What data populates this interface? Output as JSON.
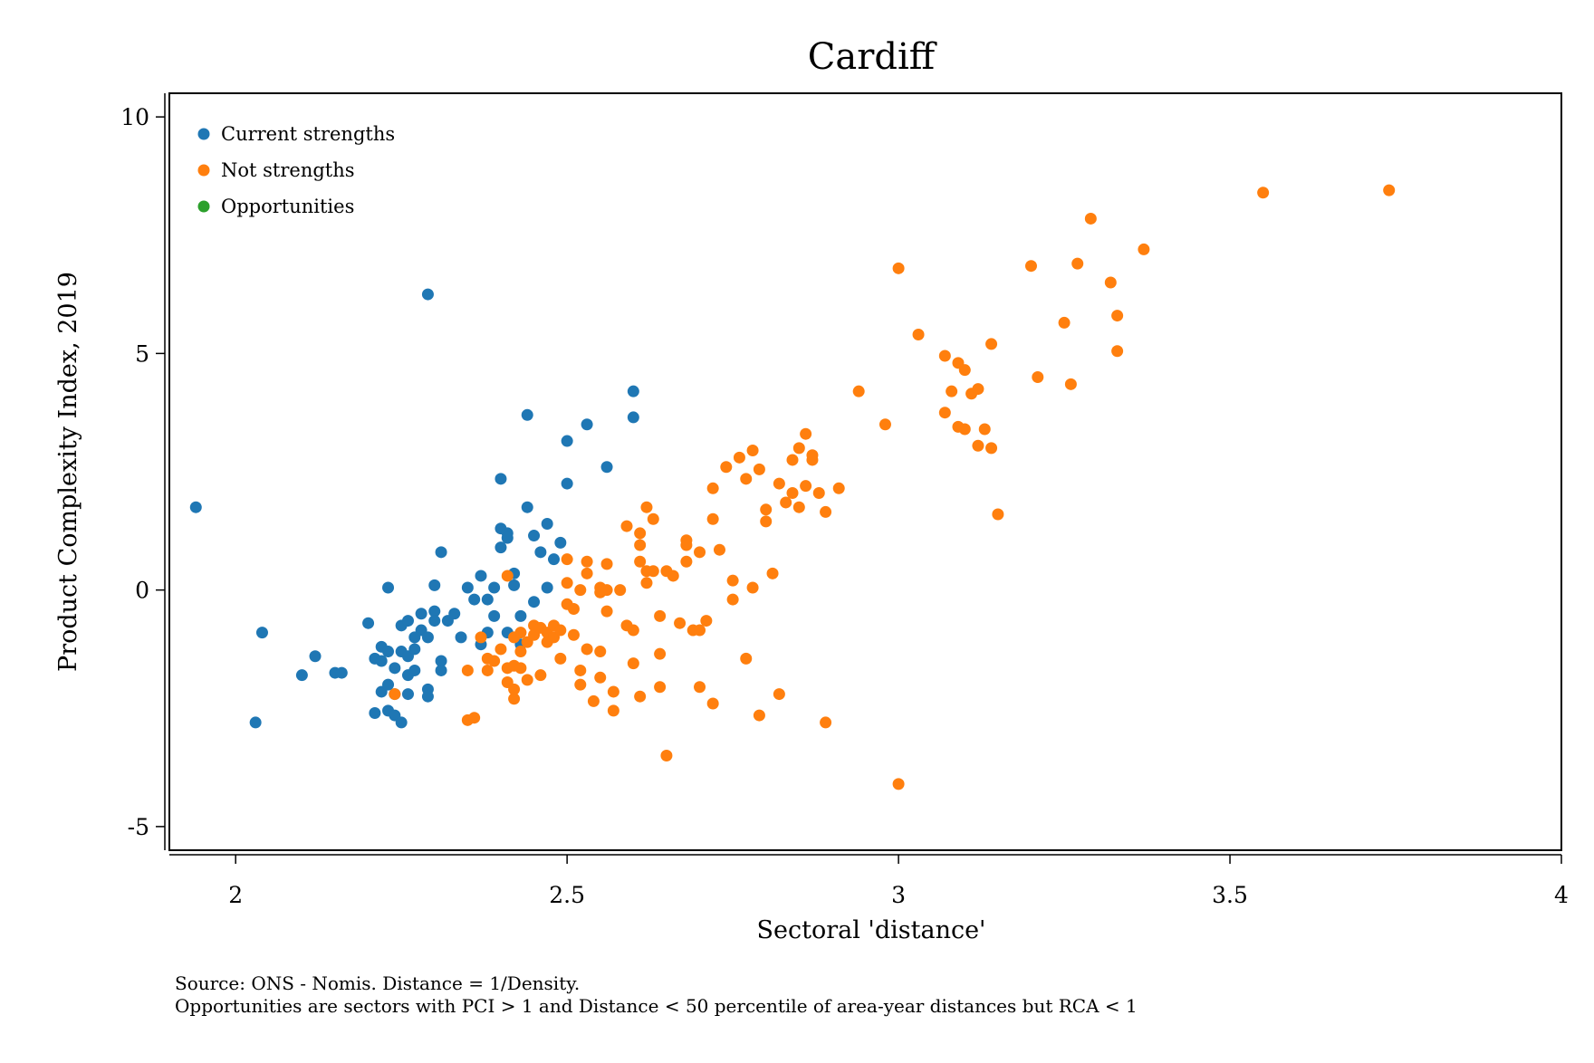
{
  "chart_data": {
    "type": "scatter",
    "title": "Cardiff",
    "xlabel": "Sectoral 'distance'",
    "ylabel": "Product Complexity Index, 2019",
    "xlim": [
      1.9,
      4.0
    ],
    "ylim": [
      -5.5,
      10.5
    ],
    "xticks": [
      2,
      2.5,
      3,
      3.5,
      4
    ],
    "xtick_labels": [
      "2",
      "2.5",
      "3",
      "3.5",
      "4"
    ],
    "yticks": [
      -5,
      0,
      5,
      10
    ],
    "ytick_labels": [
      "-5",
      "0",
      "5",
      "10"
    ],
    "grid": false,
    "legend_position": "top-left",
    "notes": [
      "Source: ONS - Nomis. Distance = 1/Density.",
      "Opportunities are sectors with PCI > 1 and Distance < 50 percentile of area-year distances but RCA < 1"
    ],
    "series": [
      {
        "name": "Current strengths",
        "color": "#1f77b4",
        "points": [
          [
            1.94,
            1.75
          ],
          [
            2.03,
            -2.8
          ],
          [
            2.04,
            -0.9
          ],
          [
            2.1,
            -1.8
          ],
          [
            2.12,
            -1.4
          ],
          [
            2.15,
            -1.75
          ],
          [
            2.16,
            -1.75
          ],
          [
            2.2,
            -0.7
          ],
          [
            2.21,
            -1.45
          ],
          [
            2.21,
            -2.6
          ],
          [
            2.22,
            -1.2
          ],
          [
            2.22,
            -1.5
          ],
          [
            2.22,
            -2.15
          ],
          [
            2.23,
            0.05
          ],
          [
            2.23,
            -1.3
          ],
          [
            2.23,
            -2.55
          ],
          [
            2.23,
            -2.0
          ],
          [
            2.24,
            -1.65
          ],
          [
            2.24,
            -2.2
          ],
          [
            2.24,
            -2.65
          ],
          [
            2.25,
            -0.75
          ],
          [
            2.25,
            -1.3
          ],
          [
            2.25,
            -2.8
          ],
          [
            2.26,
            -0.65
          ],
          [
            2.26,
            -1.4
          ],
          [
            2.26,
            -2.2
          ],
          [
            2.26,
            -1.8
          ],
          [
            2.27,
            -1.0
          ],
          [
            2.27,
            -1.25
          ],
          [
            2.27,
            -1.7
          ],
          [
            2.28,
            -0.5
          ],
          [
            2.28,
            -0.85
          ],
          [
            2.29,
            -1.0
          ],
          [
            2.29,
            -2.1
          ],
          [
            2.29,
            -2.25
          ],
          [
            2.3,
            0.1
          ],
          [
            2.3,
            -0.45
          ],
          [
            2.3,
            -0.65
          ],
          [
            2.31,
            0.8
          ],
          [
            2.31,
            -1.5
          ],
          [
            2.31,
            -1.7
          ],
          [
            2.32,
            -0.65
          ],
          [
            2.33,
            -0.5
          ],
          [
            2.34,
            -1.0
          ],
          [
            2.35,
            0.05
          ],
          [
            2.36,
            -0.2
          ],
          [
            2.37,
            0.3
          ],
          [
            2.37,
            -1.15
          ],
          [
            2.38,
            -0.2
          ],
          [
            2.38,
            -0.9
          ],
          [
            2.39,
            0.05
          ],
          [
            2.39,
            -0.55
          ],
          [
            2.4,
            1.3
          ],
          [
            2.4,
            0.9
          ],
          [
            2.4,
            2.35
          ],
          [
            2.41,
            1.2
          ],
          [
            2.41,
            1.1
          ],
          [
            2.41,
            -0.9
          ],
          [
            2.42,
            0.1
          ],
          [
            2.42,
            0.35
          ],
          [
            2.43,
            -0.55
          ],
          [
            2.43,
            -1.15
          ],
          [
            2.44,
            1.75
          ],
          [
            2.44,
            3.7
          ],
          [
            2.45,
            1.15
          ],
          [
            2.45,
            -0.25
          ],
          [
            2.46,
            0.8
          ],
          [
            2.47,
            0.05
          ],
          [
            2.47,
            1.4
          ],
          [
            2.48,
            0.65
          ],
          [
            2.49,
            1.0
          ],
          [
            2.5,
            3.15
          ],
          [
            2.5,
            2.25
          ],
          [
            2.53,
            3.5
          ],
          [
            2.56,
            2.6
          ],
          [
            2.6,
            4.2
          ],
          [
            2.6,
            3.65
          ],
          [
            2.29,
            6.25
          ]
        ]
      },
      {
        "name": "Not strengths",
        "color": "#ff7f0e",
        "points": [
          [
            2.24,
            -2.2
          ],
          [
            2.35,
            -1.7
          ],
          [
            2.35,
            -2.75
          ],
          [
            2.36,
            -2.7
          ],
          [
            2.37,
            -1.0
          ],
          [
            2.38,
            -1.45
          ],
          [
            2.38,
            -1.7
          ],
          [
            2.39,
            -1.5
          ],
          [
            2.4,
            -1.25
          ],
          [
            2.41,
            -1.65
          ],
          [
            2.41,
            -1.95
          ],
          [
            2.41,
            0.3
          ],
          [
            2.42,
            -1.0
          ],
          [
            2.42,
            -1.6
          ],
          [
            2.42,
            -2.1
          ],
          [
            2.42,
            -2.3
          ],
          [
            2.43,
            -0.9
          ],
          [
            2.43,
            -1.3
          ],
          [
            2.43,
            -1.65
          ],
          [
            2.44,
            -1.1
          ],
          [
            2.44,
            -1.9
          ],
          [
            2.45,
            -0.75
          ],
          [
            2.45,
            -0.95
          ],
          [
            2.46,
            -0.8
          ],
          [
            2.46,
            -1.8
          ],
          [
            2.47,
            -0.9
          ],
          [
            2.47,
            -1.1
          ],
          [
            2.48,
            -1.0
          ],
          [
            2.48,
            -0.75
          ],
          [
            2.49,
            -1.45
          ],
          [
            2.49,
            -0.85
          ],
          [
            2.5,
            0.65
          ],
          [
            2.5,
            0.15
          ],
          [
            2.5,
            -0.3
          ],
          [
            2.51,
            -0.95
          ],
          [
            2.51,
            -0.4
          ],
          [
            2.52,
            -1.7
          ],
          [
            2.52,
            0.0
          ],
          [
            2.52,
            -2.0
          ],
          [
            2.53,
            0.6
          ],
          [
            2.53,
            0.35
          ],
          [
            2.53,
            -1.25
          ],
          [
            2.54,
            -2.35
          ],
          [
            2.55,
            0.05
          ],
          [
            2.55,
            -0.05
          ],
          [
            2.55,
            -1.3
          ],
          [
            2.55,
            -1.85
          ],
          [
            2.56,
            -0.45
          ],
          [
            2.56,
            0.55
          ],
          [
            2.56,
            0.0
          ],
          [
            2.57,
            -2.15
          ],
          [
            2.57,
            -2.55
          ],
          [
            2.58,
            0.0
          ],
          [
            2.59,
            1.35
          ],
          [
            2.59,
            -0.75
          ],
          [
            2.6,
            -0.85
          ],
          [
            2.6,
            -1.55
          ],
          [
            2.61,
            0.95
          ],
          [
            2.61,
            0.6
          ],
          [
            2.61,
            1.2
          ],
          [
            2.61,
            -2.25
          ],
          [
            2.62,
            0.15
          ],
          [
            2.62,
            0.4
          ],
          [
            2.62,
            1.75
          ],
          [
            2.63,
            1.5
          ],
          [
            2.63,
            0.4
          ],
          [
            2.64,
            -0.55
          ],
          [
            2.64,
            -2.05
          ],
          [
            2.64,
            -1.35
          ],
          [
            2.65,
            0.4
          ],
          [
            2.65,
            -3.5
          ],
          [
            2.66,
            0.3
          ],
          [
            2.67,
            -0.7
          ],
          [
            2.68,
            0.95
          ],
          [
            2.68,
            0.6
          ],
          [
            2.68,
            1.05
          ],
          [
            2.69,
            -0.85
          ],
          [
            2.7,
            -2.05
          ],
          [
            2.7,
            -0.85
          ],
          [
            2.7,
            0.8
          ],
          [
            2.71,
            -0.65
          ],
          [
            2.72,
            -2.4
          ],
          [
            2.72,
            2.15
          ],
          [
            2.72,
            1.5
          ],
          [
            2.73,
            0.85
          ],
          [
            2.74,
            2.6
          ],
          [
            2.75,
            -0.2
          ],
          [
            2.75,
            0.2
          ],
          [
            2.76,
            2.8
          ],
          [
            2.77,
            2.35
          ],
          [
            2.77,
            -1.45
          ],
          [
            2.78,
            0.05
          ],
          [
            2.78,
            2.95
          ],
          [
            2.79,
            -2.65
          ],
          [
            2.79,
            2.55
          ],
          [
            2.8,
            1.45
          ],
          [
            2.8,
            1.7
          ],
          [
            2.81,
            0.35
          ],
          [
            2.82,
            -2.2
          ],
          [
            2.82,
            2.25
          ],
          [
            2.83,
            1.85
          ],
          [
            2.84,
            2.75
          ],
          [
            2.84,
            2.05
          ],
          [
            2.85,
            3.0
          ],
          [
            2.85,
            1.75
          ],
          [
            2.86,
            3.3
          ],
          [
            2.86,
            2.2
          ],
          [
            2.87,
            2.75
          ],
          [
            2.87,
            2.85
          ],
          [
            2.88,
            2.05
          ],
          [
            2.89,
            1.65
          ],
          [
            2.89,
            -2.8
          ],
          [
            2.91,
            2.15
          ],
          [
            2.94,
            4.2
          ],
          [
            2.98,
            3.5
          ],
          [
            3.0,
            6.8
          ],
          [
            3.0,
            -4.1
          ],
          [
            3.03,
            5.4
          ],
          [
            3.07,
            4.95
          ],
          [
            3.07,
            3.75
          ],
          [
            3.08,
            4.2
          ],
          [
            3.09,
            3.45
          ],
          [
            3.09,
            4.8
          ],
          [
            3.1,
            4.65
          ],
          [
            3.1,
            3.4
          ],
          [
            3.11,
            4.15
          ],
          [
            3.12,
            4.25
          ],
          [
            3.12,
            3.05
          ],
          [
            3.13,
            3.4
          ],
          [
            3.14,
            3.0
          ],
          [
            3.14,
            5.2
          ],
          [
            3.15,
            1.6
          ],
          [
            3.2,
            6.85
          ],
          [
            3.21,
            4.5
          ],
          [
            3.25,
            5.65
          ],
          [
            3.26,
            4.35
          ],
          [
            3.27,
            6.9
          ],
          [
            3.29,
            7.85
          ],
          [
            3.32,
            6.5
          ],
          [
            3.33,
            5.05
          ],
          [
            3.33,
            5.8
          ],
          [
            3.37,
            7.2
          ],
          [
            3.55,
            8.4
          ],
          [
            3.74,
            8.45
          ]
        ]
      },
      {
        "name": "Opportunities",
        "color": "#2ca02c",
        "points": []
      }
    ]
  }
}
